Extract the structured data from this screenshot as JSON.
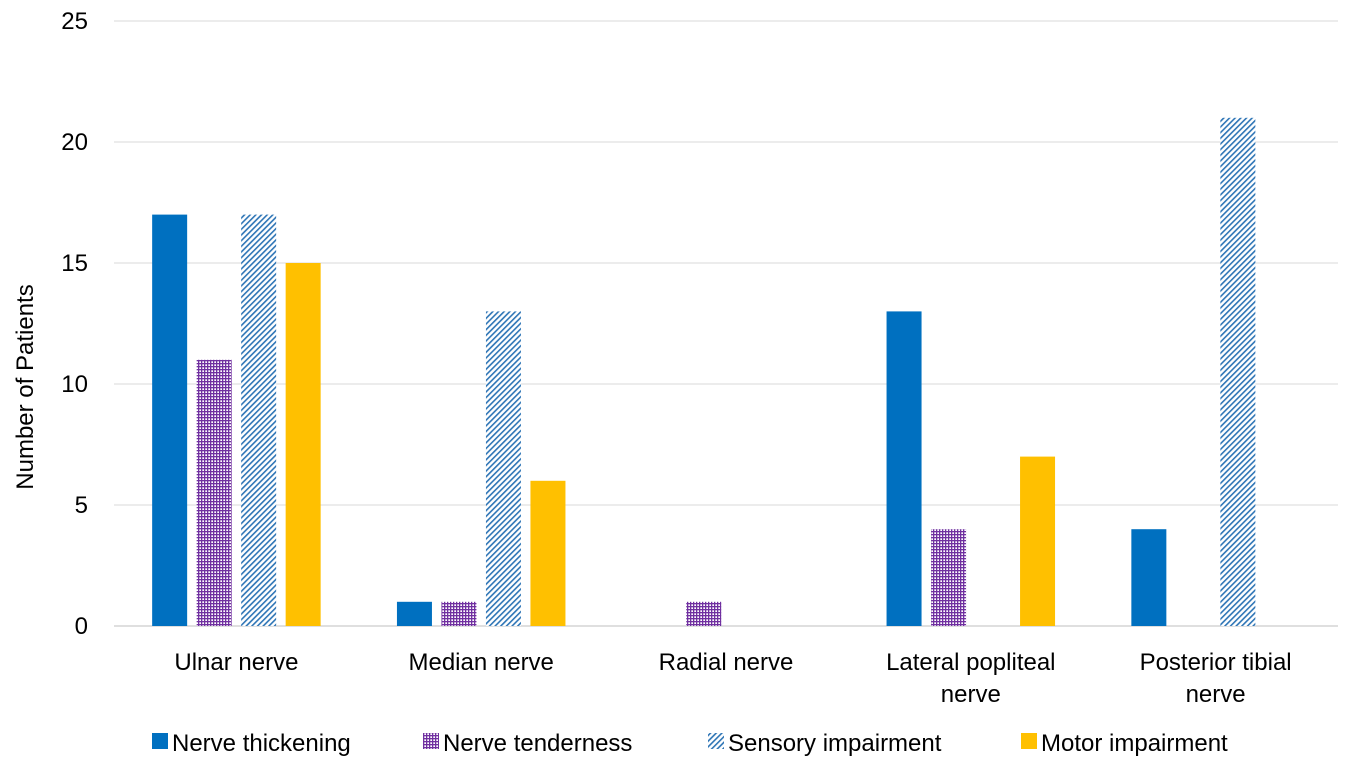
{
  "chart_data": {
    "type": "bar",
    "title": "",
    "xlabel": "",
    "ylabel": "Number of Patients",
    "ylim": [
      0,
      25
    ],
    "yticks": [
      0,
      5,
      10,
      15,
      20,
      25
    ],
    "grid": true,
    "legend_position": "bottom",
    "categories": [
      [
        "Ulnar nerve"
      ],
      [
        "Median nerve"
      ],
      [
        "Radial nerve"
      ],
      [
        "Lateral popliteal",
        "nerve"
      ],
      [
        "Posterior tibial",
        "nerve"
      ]
    ],
    "series": [
      {
        "name": "Nerve thickening",
        "values": [
          17,
          1,
          0,
          13,
          4
        ],
        "color": "#0070C0",
        "pattern": "solid"
      },
      {
        "name": "Nerve tenderness",
        "values": [
          11,
          1,
          1,
          4,
          0
        ],
        "color": "#7030A0",
        "pattern": "grid"
      },
      {
        "name": "Sensory impairment",
        "values": [
          17,
          13,
          0,
          0,
          21
        ],
        "color": "#2E75B6",
        "pattern": "diagonal"
      },
      {
        "name": "Motor impairment",
        "values": [
          15,
          6,
          0,
          7,
          0
        ],
        "color": "#FFC000",
        "pattern": "solid"
      }
    ]
  }
}
